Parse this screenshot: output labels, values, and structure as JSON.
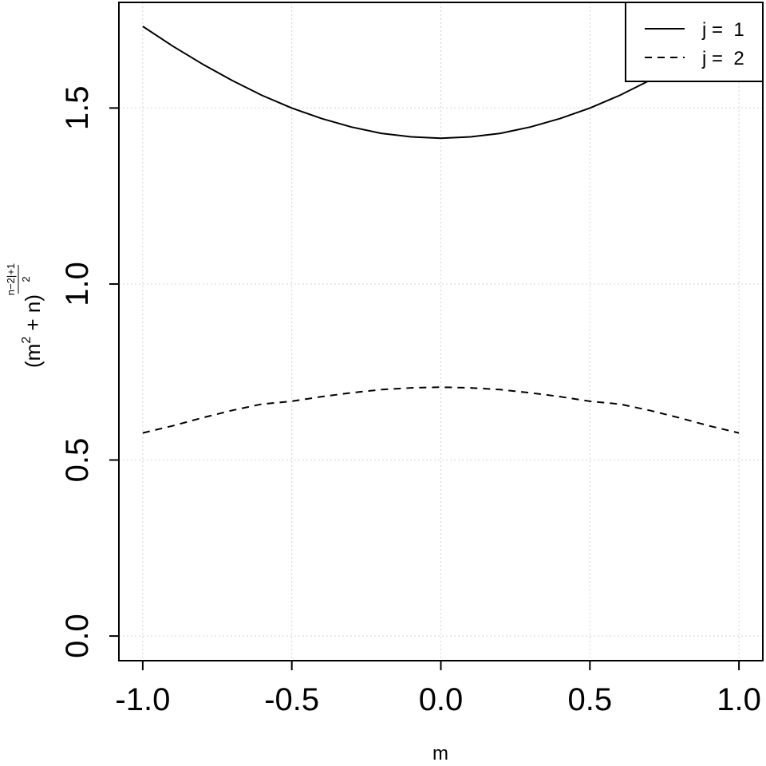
{
  "chart_data": {
    "type": "line",
    "xlabel": "m",
    "ylabel": {
      "base": "(m",
      "sq": "2",
      "mid": " + n)",
      "exp_num": "n−2|+1",
      "exp_den": "2"
    },
    "xlim": [
      -1.08,
      1.08
    ],
    "ylim": [
      -0.07,
      1.8
    ],
    "x_ticks": [
      -1.0,
      -0.5,
      0.0,
      0.5,
      1.0
    ],
    "x_tick_labels": [
      "-1.0",
      "-0.5",
      "0.0",
      "0.5",
      "1.0"
    ],
    "y_ticks": [
      0.0,
      0.5,
      1.0,
      1.5
    ],
    "y_tick_labels": [
      "0.0",
      "0.5",
      "1.0",
      "1.5"
    ],
    "grid": true,
    "legend": "top-right",
    "x": [
      -1.0,
      -0.9,
      -0.8,
      -0.7,
      -0.6,
      -0.5,
      -0.4,
      -0.3,
      -0.2,
      -0.1,
      0.0,
      0.1,
      0.2,
      0.3,
      0.4,
      0.5,
      0.6,
      0.7,
      0.8,
      0.9,
      1.0
    ],
    "series": [
      {
        "name": "j =  1",
        "line_style": "solid",
        "values": [
          1.732,
          1.676,
          1.625,
          1.578,
          1.536,
          1.5,
          1.47,
          1.446,
          1.428,
          1.418,
          1.414,
          1.418,
          1.428,
          1.446,
          1.47,
          1.5,
          1.536,
          1.578,
          1.625,
          1.676,
          1.732
        ]
      },
      {
        "name": "j =  2",
        "line_style": "dashed",
        "values": [
          0.577,
          0.597,
          0.62,
          0.641,
          0.659,
          0.667,
          0.68,
          0.691,
          0.7,
          0.705,
          0.707,
          0.705,
          0.7,
          0.691,
          0.68,
          0.667,
          0.659,
          0.641,
          0.62,
          0.597,
          0.577
        ]
      }
    ]
  }
}
